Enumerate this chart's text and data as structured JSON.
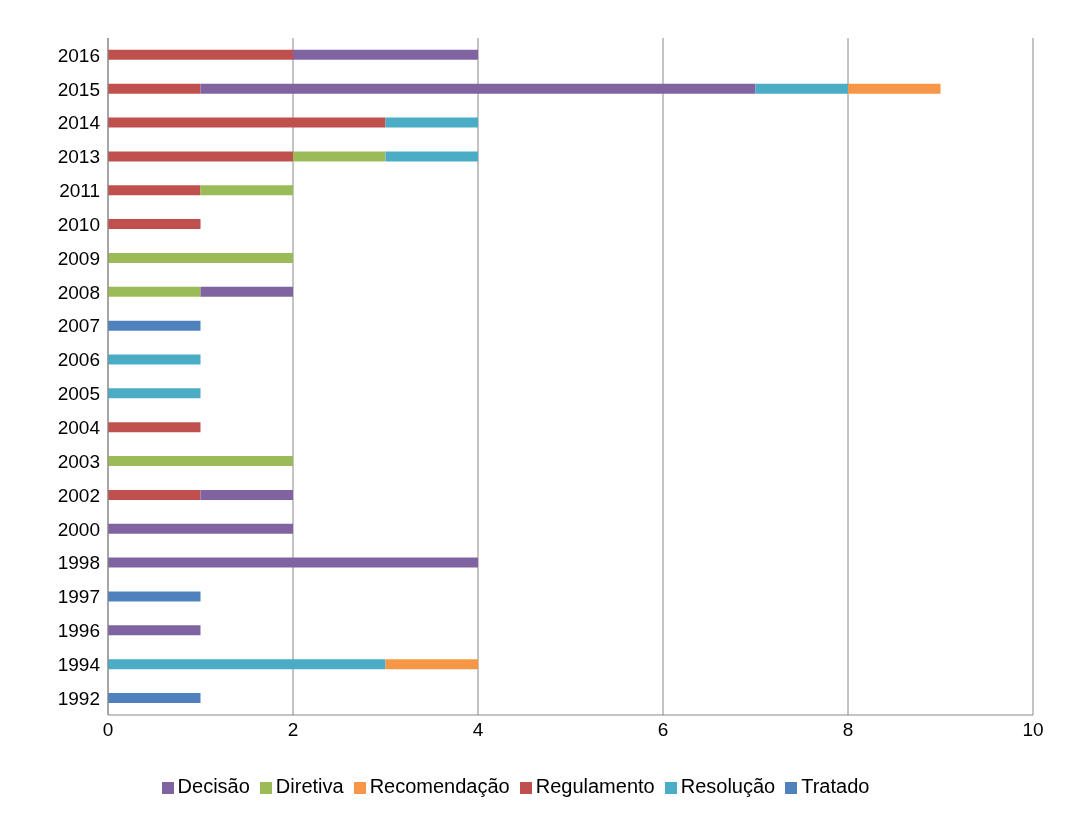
{
  "chart_data": {
    "type": "bar",
    "orientation": "horizontal",
    "stacked": true,
    "categories": [
      "2016",
      "2015",
      "2014",
      "2013",
      "2011",
      "2010",
      "2009",
      "2008",
      "2007",
      "2006",
      "2005",
      "2004",
      "2003",
      "2002",
      "2000",
      "1998",
      "1997",
      "1996",
      "1994",
      "1992"
    ],
    "series": [
      {
        "name": "Tratado",
        "color": "#4f81bd",
        "values": [
          null,
          null,
          null,
          null,
          null,
          null,
          null,
          null,
          1,
          null,
          null,
          null,
          null,
          null,
          null,
          null,
          1,
          null,
          null,
          1
        ]
      },
      {
        "name": "Regulamento",
        "color": "#c0504d",
        "values": [
          2,
          1,
          3,
          2,
          1,
          1,
          null,
          null,
          null,
          null,
          null,
          1,
          null,
          1,
          null,
          null,
          null,
          null,
          null,
          null
        ]
      },
      {
        "name": "Diretiva",
        "color": "#9bbb59",
        "values": [
          null,
          null,
          null,
          1,
          1,
          null,
          2,
          1,
          null,
          null,
          null,
          null,
          2,
          null,
          null,
          null,
          null,
          null,
          null,
          null
        ]
      },
      {
        "name": "Decisão",
        "color": "#8064a2",
        "values": [
          2,
          6,
          null,
          null,
          null,
          null,
          null,
          1,
          null,
          null,
          null,
          null,
          null,
          1,
          2,
          4,
          null,
          1,
          null,
          null
        ]
      },
      {
        "name": "Resolução",
        "color": "#4bacc6",
        "values": [
          null,
          1,
          1,
          1,
          null,
          null,
          null,
          null,
          null,
          1,
          1,
          null,
          null,
          null,
          null,
          null,
          null,
          null,
          3,
          null
        ]
      },
      {
        "name": "Recomendação",
        "color": "#f79646",
        "values": [
          null,
          1,
          null,
          null,
          null,
          null,
          null,
          null,
          null,
          null,
          null,
          null,
          null,
          null,
          null,
          null,
          null,
          null,
          1,
          null
        ]
      }
    ],
    "xlim": [
      0,
      10
    ],
    "xticks": [
      0,
      2,
      4,
      6,
      8,
      10
    ],
    "grid": "x",
    "legend": "bottom"
  }
}
